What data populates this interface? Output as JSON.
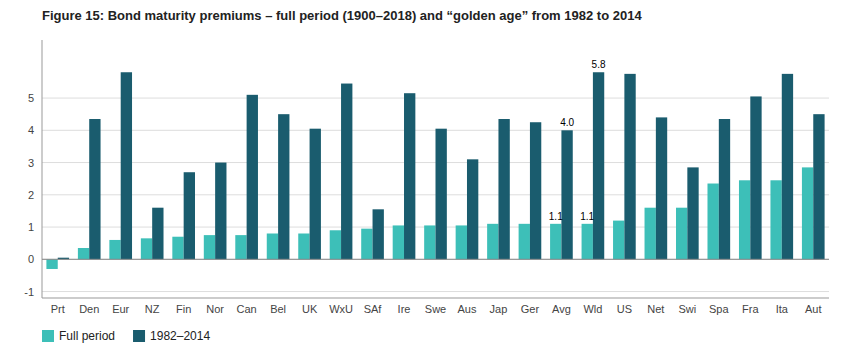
{
  "chart_data": {
    "type": "bar",
    "title": "Figure 15: Bond maturity premiums – full period (1900–2018) and “golden age” from 1982 to 2014",
    "categories": [
      "Prt",
      "Den",
      "Eur",
      "NZ",
      "Fin",
      "Nor",
      "Can",
      "Bel",
      "UK",
      "WxU",
      "SAf",
      "Ire",
      "Swe",
      "Aus",
      "Jap",
      "Ger",
      "Avg",
      "Wld",
      "US",
      "Net",
      "Swi",
      "Spa",
      "Fra",
      "Ita",
      "Aut"
    ],
    "series": [
      {
        "name": "Full period",
        "color": "#3dbfb8",
        "values": [
          -0.3,
          0.35,
          0.6,
          0.65,
          0.7,
          0.75,
          0.75,
          0.8,
          0.8,
          0.9,
          0.95,
          1.05,
          1.05,
          1.05,
          1.1,
          1.1,
          1.1,
          1.1,
          1.2,
          1.6,
          1.6,
          2.35,
          2.45,
          2.45,
          2.85
        ]
      },
      {
        "name": "1982–2014",
        "color": "#1a5c6e",
        "values": [
          0.05,
          4.35,
          5.8,
          1.6,
          2.7,
          3.0,
          5.1,
          4.5,
          4.05,
          5.45,
          1.55,
          5.15,
          4.05,
          3.1,
          4.35,
          4.25,
          4.0,
          5.8,
          5.75,
          4.4,
          2.85,
          4.35,
          5.05,
          5.75,
          4.5
        ]
      }
    ],
    "ylim": [
      -1.2,
      6.8
    ],
    "yticks": [
      -1,
      0,
      1,
      2,
      3,
      4,
      5
    ],
    "grid": true,
    "legend": "bottom",
    "annotations": [
      {
        "text": "1.1",
        "series": "Full period",
        "category": "Avg",
        "value": 1.1
      },
      {
        "text": "4.0",
        "series": "1982–2014",
        "category": "Avg",
        "value": 4.0
      },
      {
        "text": "1.1",
        "series": "Full period",
        "category": "Wld",
        "value": 1.1
      },
      {
        "text": "5.8",
        "series": "1982–2014",
        "category": "Wld",
        "value": 5.8
      }
    ]
  }
}
